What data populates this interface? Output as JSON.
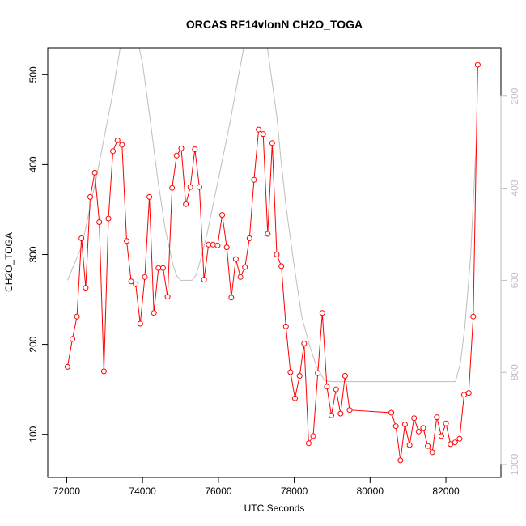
{
  "chart_data": {
    "type": "line",
    "title": "ORCAS RF14vlonN CH2O_TOGA",
    "xlabel": "UTC Seconds",
    "ylabel": "CH2O_TOGA",
    "xlim": [
      71500,
      83450
    ],
    "ylim": [
      52,
      530
    ],
    "x_ticks": [
      72000,
      74000,
      76000,
      78000,
      80000,
      82000
    ],
    "y_ticks": [
      100,
      200,
      300,
      400,
      500
    ],
    "y2_ticks": [
      200,
      400,
      600,
      800,
      1000
    ],
    "y2_reversed": true,
    "y2lim": [
      95,
      1028
    ],
    "grid": false,
    "series": [
      {
        "color": "#ff0000",
        "marker": "open-circle",
        "axis": "left",
        "x": [
          72020,
          72150,
          72270,
          72390,
          72500,
          72620,
          72740,
          72860,
          72980,
          73100,
          73220,
          73340,
          73460,
          73580,
          73700,
          73820,
          73940,
          74060,
          74180,
          74300,
          74420,
          74540,
          74660,
          74780,
          74900,
          75020,
          75140,
          75260,
          75380,
          75500,
          75620,
          75740,
          75860,
          75980,
          76100,
          76220,
          76340,
          76460,
          76580,
          76700,
          76820,
          76940,
          77060,
          77180,
          77300,
          77420,
          77540,
          77660,
          77780,
          77900,
          78020,
          78140,
          78260,
          78380,
          78500,
          78620,
          78740,
          78860,
          78980,
          79100,
          79220,
          79340,
          79460,
          80560,
          80680,
          80800,
          80920,
          81040,
          81160,
          81280,
          81400,
          81520,
          81640,
          81760,
          81880,
          82000,
          82120,
          82240,
          82360,
          82480,
          82600,
          82720,
          82840
        ],
        "y": [
          175,
          206,
          231,
          318,
          263,
          364,
          391,
          336,
          170,
          340,
          415,
          427,
          422,
          315,
          270,
          267,
          223,
          275,
          364,
          235,
          285,
          285,
          253,
          374,
          410,
          418,
          356,
          375,
          417,
          375,
          272,
          311,
          311,
          310,
          344,
          308,
          252,
          295,
          275,
          286,
          318,
          383,
          439,
          434,
          323,
          424,
          300,
          287,
          220,
          169,
          140,
          165,
          201,
          90,
          98,
          168,
          235,
          153,
          121,
          150,
          123,
          165,
          127,
          124,
          109,
          71,
          111,
          88,
          118,
          103,
          107,
          87,
          80,
          119,
          98,
          112,
          89,
          91,
          95,
          144,
          146,
          231,
          511
        ]
      },
      {
        "color": "#bebebe",
        "marker": "none",
        "axis": "right",
        "x": [
          72020,
          72400,
          72800,
          73200,
          73420,
          73520,
          73600,
          73700,
          73800,
          73900,
          74000,
          74200,
          74400,
          74600,
          74800,
          74900,
          75000,
          75100,
          75200,
          75300,
          75400,
          75500,
          75700,
          75900,
          76100,
          76300,
          76500,
          76700,
          76850,
          76950,
          77050,
          77120,
          77200,
          77300,
          77400,
          77550,
          77650,
          77800,
          78000,
          78200,
          78400,
          78600,
          78800,
          79000,
          79100,
          80000,
          81000,
          82000,
          82250,
          82380,
          82500,
          82650,
          82800
        ],
        "y": [
          600,
          525,
          370,
          200,
          90,
          60,
          40,
          40,
          60,
          90,
          130,
          250,
          380,
          490,
          565,
          590,
          600,
          600,
          600,
          600,
          590,
          565,
          500,
          420,
          340,
          260,
          170,
          80,
          20,
          20,
          20,
          40,
          60,
          100,
          160,
          250,
          340,
          450,
          570,
          680,
          740,
          790,
          818,
          820,
          820,
          820,
          820,
          820,
          820,
          780,
          700,
          550,
          300
        ]
      }
    ]
  }
}
